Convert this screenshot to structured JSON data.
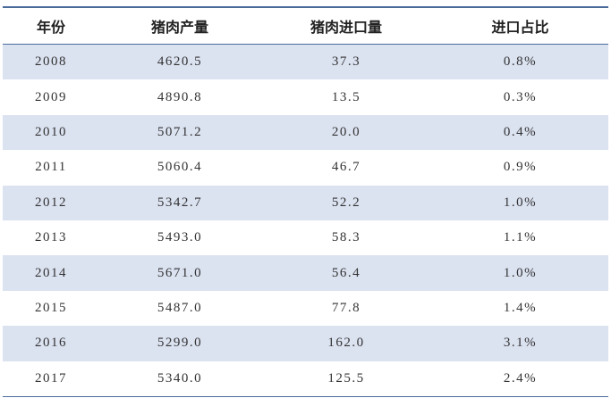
{
  "table": {
    "header": [
      "年份",
      "猪肉产量",
      "猪肉进口量",
      "进口占比"
    ],
    "rows": [
      [
        "2008",
        "4620.5",
        "37.3",
        "0.8%"
      ],
      [
        "2009",
        "4890.8",
        "13.5",
        "0.3%"
      ],
      [
        "2010",
        "5071.2",
        "20.0",
        "0.4%"
      ],
      [
        "2011",
        "5060.4",
        "46.7",
        "0.9%"
      ],
      [
        "2012",
        "5342.7",
        "52.2",
        "1.0%"
      ],
      [
        "2013",
        "5493.0",
        "58.3",
        "1.1%"
      ],
      [
        "2014",
        "5671.0",
        "56.4",
        "1.0%"
      ],
      [
        "2015",
        "5487.0",
        "77.8",
        "1.4%"
      ],
      [
        "2016",
        "5299.0",
        "162.0",
        "3.1%"
      ],
      [
        "2017",
        "5340.0",
        "125.5",
        "2.4%"
      ]
    ]
  }
}
